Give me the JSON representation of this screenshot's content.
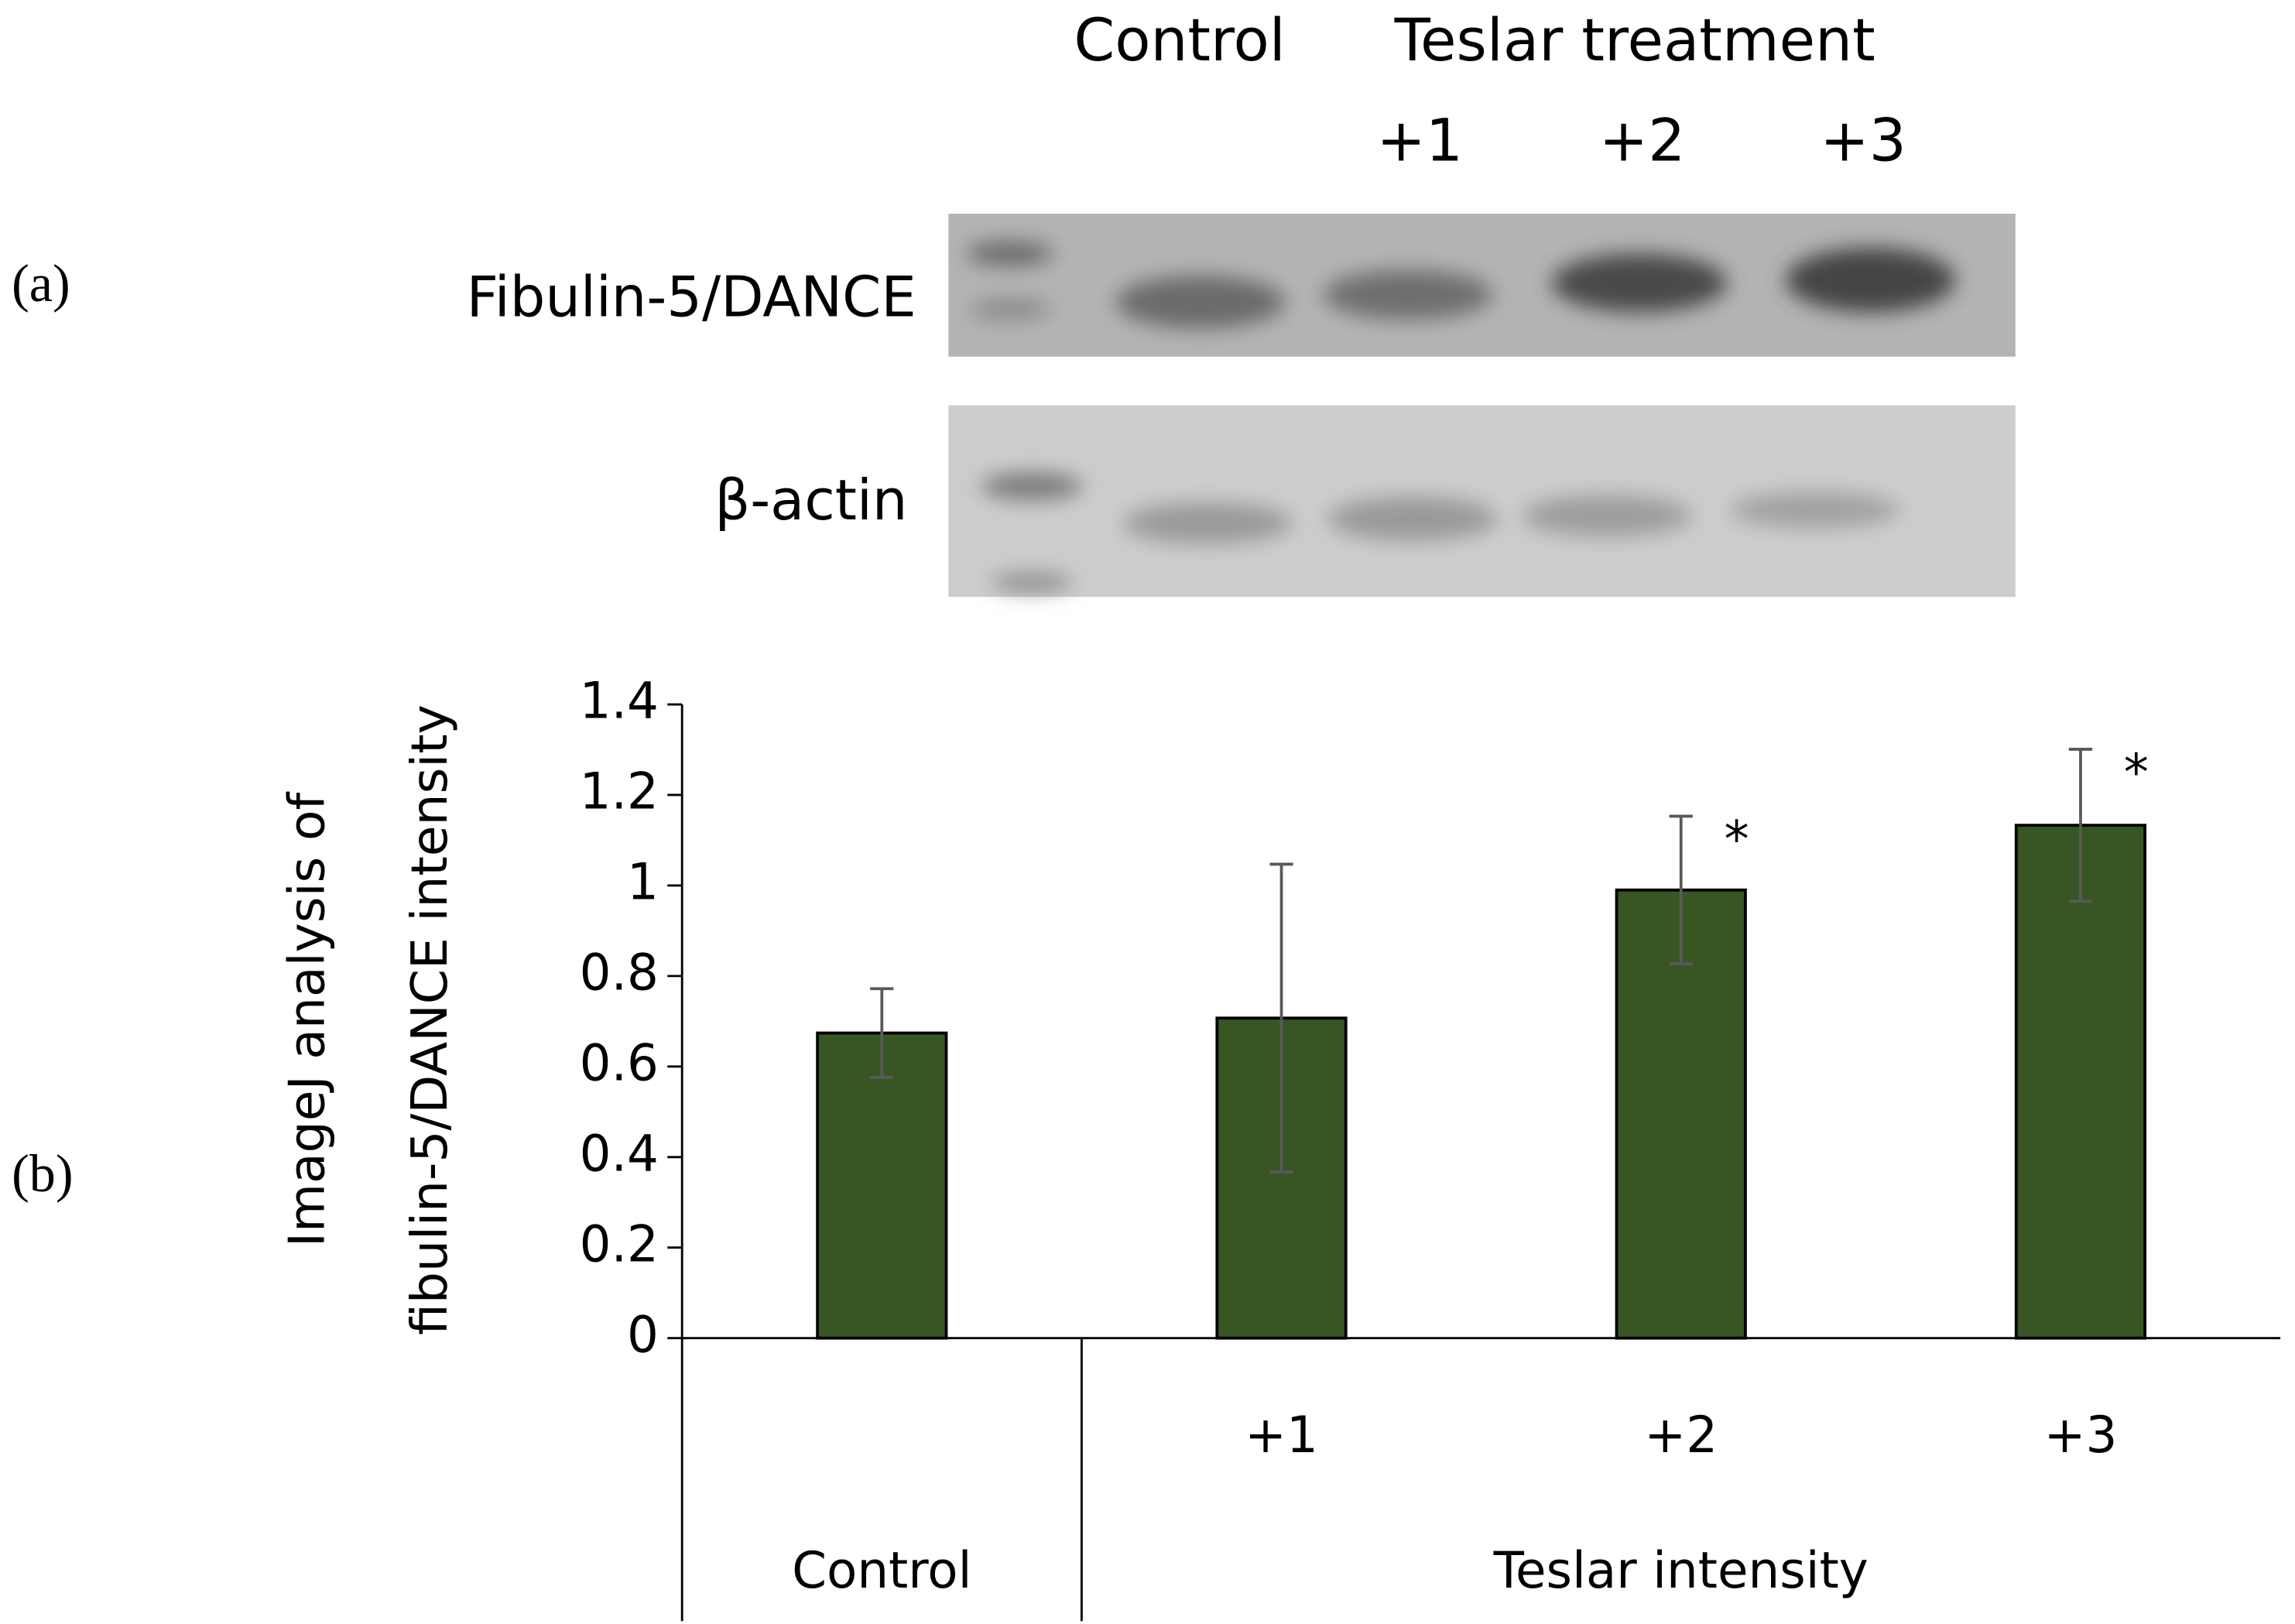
{
  "panel_labels": [
    "(a)",
    "(b)"
  ],
  "blot": {
    "lane_header": "Control",
    "treatment_header": "Teslar treatment",
    "lanes": [
      "+1",
      "+2",
      "+3"
    ],
    "rows": [
      "Fibulin-5/DANCE",
      "β-actin"
    ]
  },
  "chart_data": {
    "type": "bar",
    "y_label": [
      "ImageJ analysis of",
      "fibulin-5/DANCE intensity"
    ],
    "categories": [
      null,
      "+1",
      "+2",
      "+3"
    ],
    "category_groups": [
      {
        "name": "Control",
        "count": 1
      },
      {
        "name": "Teslar intensity",
        "count": 3
      }
    ],
    "values": [
      0.674,
      0.707,
      0.99,
      1.133
    ],
    "errors": [
      0.098,
      0.34,
      0.163,
      0.168
    ],
    "markers": [
      null,
      null,
      "*",
      "*"
    ],
    "color": "#375623",
    "ylim": [
      0,
      1.4
    ],
    "yticks": [
      0,
      0.2,
      0.4,
      0.6,
      0.8,
      1,
      1.2,
      1.4
    ]
  }
}
